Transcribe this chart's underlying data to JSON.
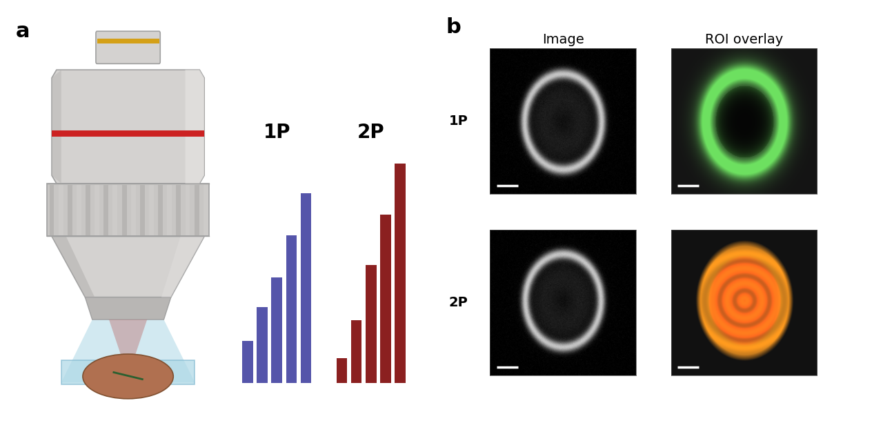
{
  "panel_a_label": "a",
  "panel_b_label": "b",
  "bar_1p_label": "1P",
  "bar_2p_label": "2P",
  "bar_1p_values": [
    1.0,
    1.8,
    2.5,
    3.5,
    4.5
  ],
  "bar_2p_values": [
    0.6,
    1.5,
    2.8,
    4.0,
    5.2
  ],
  "bar_1p_color": "#5555aa",
  "bar_2p_color": "#8b2020",
  "col_labels": [
    "Image",
    "ROI overlay"
  ],
  "row_labels": [
    "1P",
    "2P"
  ],
  "bg_color": "#ffffff",
  "lens_body_color": "#d4d2d0",
  "lens_dark_color": "#a0a0a0",
  "lens_ring_yellow": "#d4a017",
  "lens_ring_red": "#cc2222",
  "lens_bottom_color": "#add8e6",
  "cell_color": "#b07050",
  "label_fontsize": 20,
  "panel_label_fontsize": 22
}
